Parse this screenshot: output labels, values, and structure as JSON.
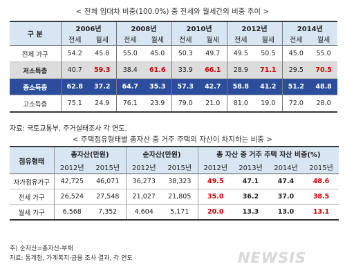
{
  "title1": "< 전체 임대차 비중(100.0%) 중 전세와 월세간의 비중 추이 >",
  "table1": {
    "corner": "구 분",
    "years": [
      "2006년",
      "2008년",
      "2010년",
      "2012년",
      "2014년"
    ],
    "subheaders": [
      "전세",
      "월세"
    ],
    "rows": [
      {
        "label": "전체 가구",
        "values": [
          "54.2",
          "45.8",
          "55.0",
          "45.0",
          "50.3",
          "49.7",
          "49.5",
          "50.5",
          "45.0",
          "55.0"
        ]
      },
      {
        "label": "저소득층",
        "values": [
          "40.7",
          "59.3",
          "38.4",
          "61.6",
          "33.9",
          "66.1",
          "28.9",
          "71.1",
          "29.5",
          "70.5"
        ]
      },
      {
        "label": "중소득층",
        "values": [
          "62.8",
          "37.2",
          "64.7",
          "35.3",
          "57.3",
          "42.7",
          "58.8",
          "41.2",
          "51.2",
          "48.8"
        ]
      },
      {
        "label": "고소득층",
        "values": [
          "75.1",
          "24.9",
          "76.1",
          "23.9",
          "79.0",
          "21.0",
          "81.0",
          "19.0",
          "72.0",
          "28.0"
        ]
      }
    ]
  },
  "source1": "자료: 국토교통부, 주거실태조사 각 연도.",
  "title2": "< 주택점유형태별 총자산 중 거주 주택의 자산이 차지하는 비중 >",
  "table2": {
    "corner": "점유형태",
    "group_headers": [
      "총자산(만원)",
      "순자산(만원)",
      "총 자산 중 거주 주택 자산 비중(%)"
    ],
    "subheaders": [
      "2012년",
      "2015년",
      "2012년",
      "2015년",
      "2012년",
      "2013년",
      "2014년",
      "2015년"
    ],
    "rows": [
      {
        "label": "자가점유가구",
        "values": [
          "42,725",
          "46,071",
          "36,273",
          "38,323",
          "49.5",
          "47.1",
          "47.4",
          "48.6"
        ]
      },
      {
        "label": "전세 가구",
        "values": [
          "26,524",
          "27,548",
          "21,027",
          "21,805",
          "35.0",
          "36.2",
          "37.0",
          "38.5"
        ]
      },
      {
        "label": "월세 가구",
        "values": [
          "6,568",
          "7,352",
          "4,604",
          "5,171",
          "20.0",
          "13.3",
          "13.0",
          "13.1"
        ]
      }
    ]
  },
  "note2": "주) 순자산=총자산-부채",
  "source2": "자료: 통계청, 가계복지·금융 조사 결과, 각 연도",
  "watermark": "NEWSIS",
  "colors": {
    "header_bg": "#d8e5f2",
    "highlight_blue": "#2b4d9b",
    "highlight_gray": "#dcdcdc",
    "red": "#d40000",
    "yellow": "#f5e400"
  }
}
